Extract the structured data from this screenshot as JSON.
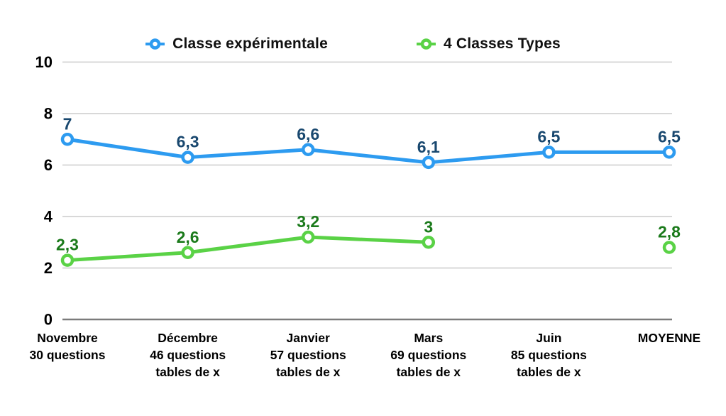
{
  "page": {
    "background": "#ffffff"
  },
  "chart_data": {
    "type": "line",
    "title": "",
    "xlabel": "",
    "ylabel": "",
    "ylim": [
      0,
      10
    ],
    "yticks": [
      0,
      2,
      4,
      6,
      8,
      10
    ],
    "grid": "horizontal",
    "legend_position": "top",
    "axis_colors": {
      "gridline": "#D8D8D8",
      "baseline": "#7B7B7B",
      "tick_text": "#000000",
      "category_text": "#000000"
    },
    "categories": [
      [
        "Novembre",
        "30 questions"
      ],
      [
        "Décembre",
        "46 questions",
        "tables de x"
      ],
      [
        "Janvier",
        "57 questions",
        "tables de x"
      ],
      [
        "Mars",
        "69 questions",
        "tables de x"
      ],
      [
        "Juin",
        "85 questions",
        "tables de x"
      ],
      [
        "MOYENNE"
      ]
    ],
    "series": [
      {
        "name": "Classe expérimentale",
        "color": "#2D9BF0",
        "label_color": "#19486F",
        "values": [
          7,
          6.3,
          6.6,
          6.1,
          6.5,
          6.5
        ],
        "value_labels": [
          "7",
          "6,3",
          "6,6",
          "6,1",
          "6,5",
          "6,5"
        ]
      },
      {
        "name": "4 Classes Types",
        "color": "#5AD246",
        "label_color": "#1B7A1B",
        "values": [
          2.3,
          2.6,
          3.2,
          3,
          null,
          2.8
        ],
        "value_labels": [
          "2,3",
          "2,6",
          "3,2",
          "3",
          null,
          "2,8"
        ]
      }
    ]
  }
}
